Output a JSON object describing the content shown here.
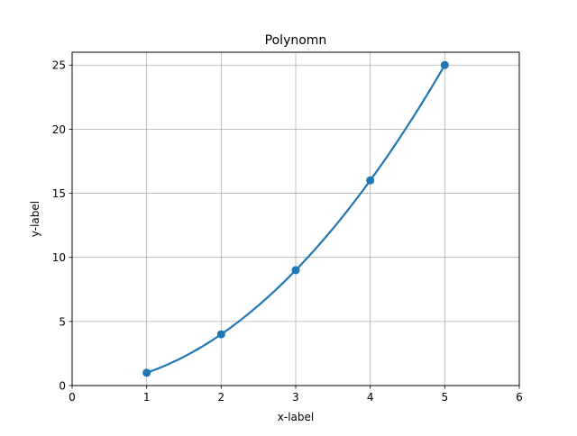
{
  "chart_data": {
    "type": "line",
    "title": "Polynomn",
    "xlabel": "x-label",
    "ylabel": "y-label",
    "xlim": [
      0,
      6
    ],
    "ylim": [
      0,
      26
    ],
    "xticks": [
      0,
      1,
      2,
      3,
      4,
      5,
      6
    ],
    "yticks": [
      0,
      5,
      10,
      15,
      20,
      25
    ],
    "xtick_labels": [
      "0",
      "1",
      "2",
      "3",
      "4",
      "5",
      "6"
    ],
    "ytick_labels": [
      "0",
      "5",
      "10",
      "15",
      "20",
      "25"
    ],
    "grid": true,
    "series": [
      {
        "curve": "y = x^2",
        "x": [
          1,
          2,
          3,
          4,
          5
        ],
        "y": [
          1,
          4,
          9,
          16,
          25
        ],
        "color": "#1f77b4",
        "marker": "circle"
      }
    ]
  }
}
